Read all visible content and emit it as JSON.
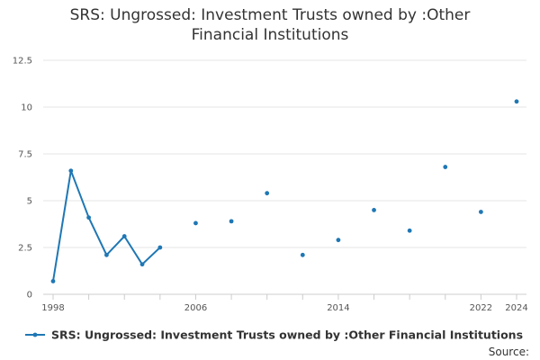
{
  "title_lines": [
    "SRS: Ungrossed: Investment Trusts owned by :Other",
    "Financial Institutions"
  ],
  "source_label": "Source:",
  "chart_data": {
    "type": "line",
    "title": "SRS: Ungrossed: Investment Trusts owned by :Other Financial Institutions",
    "xlabel": "",
    "ylabel": "",
    "xlim": [
      1998,
      2024
    ],
    "ylim": [
      0,
      12.5
    ],
    "yticks": [
      0,
      2.5,
      5,
      7.5,
      10,
      12.5
    ],
    "ytick_labels": [
      "0",
      "2.5",
      "5",
      "7.5",
      "10",
      "12.5"
    ],
    "xtick_labels": [
      1998,
      2006,
      2014,
      2022,
      2024
    ],
    "grid": true,
    "legend_position": "bottom",
    "color": "#1f77b4",
    "series": [
      {
        "name": "SRS: Ungrossed: Investment Trusts owned by :Other Financial Institutions",
        "points": [
          {
            "x": 1998.0,
            "y": 0.7
          },
          {
            "x": 1999.0,
            "y": 6.6
          },
          {
            "x": 2000.0,
            "y": 4.1
          },
          {
            "x": 2001.0,
            "y": 2.1
          },
          {
            "x": 2002.0,
            "y": 3.1
          },
          {
            "x": 2003.0,
            "y": 1.6
          },
          {
            "x": 2004.0,
            "y": 2.5
          },
          {
            "x": 2006.0,
            "y": 3.8
          },
          {
            "x": 2008.0,
            "y": 3.9
          },
          {
            "x": 2010.0,
            "y": 5.4
          },
          {
            "x": 2012.0,
            "y": 2.1
          },
          {
            "x": 2014.0,
            "y": 2.9
          },
          {
            "x": 2016.0,
            "y": 4.5
          },
          {
            "x": 2018.0,
            "y": 3.4
          },
          {
            "x": 2020.0,
            "y": 6.8
          },
          {
            "x": 2022.0,
            "y": 4.4
          },
          {
            "x": 2024.0,
            "y": 10.3
          }
        ]
      }
    ]
  }
}
